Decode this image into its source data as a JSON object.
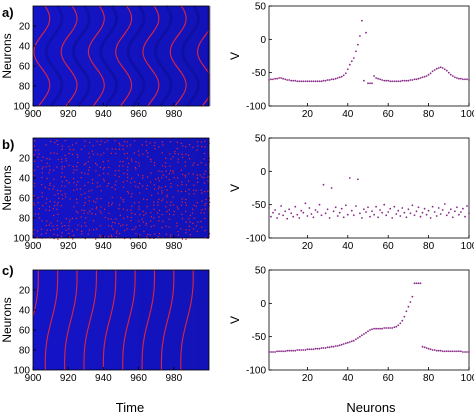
{
  "figure": {
    "panel_labels": [
      "a)",
      "b)",
      "c)"
    ],
    "xlabel_left": "Time",
    "xlabel_right": "Neurons"
  },
  "chart_data": [
    {
      "id": "a-raster",
      "type": "heatmap",
      "pattern": "waves",
      "ylabel": "Neurons",
      "xlim": [
        900,
        1000
      ],
      "ylim": [
        100,
        0
      ],
      "xticks": [
        900,
        920,
        940,
        960,
        980
      ],
      "yticks": [
        20,
        40,
        60,
        80,
        100
      ],
      "background_color": "#1414c8",
      "spike_color": "#e0243a",
      "grid": false
    },
    {
      "id": "a-profile",
      "type": "scatter",
      "ylabel": "V",
      "xlim": [
        1,
        100
      ],
      "ylim": [
        -100,
        50
      ],
      "xticks": [
        20,
        40,
        60,
        80,
        100
      ],
      "yticks": [
        50,
        0,
        -50,
        -100
      ],
      "marker_color": "#8a2a8a",
      "x": [
        1,
        2,
        3,
        4,
        5,
        6,
        7,
        8,
        9,
        10,
        11,
        12,
        13,
        14,
        15,
        16,
        17,
        18,
        19,
        20,
        21,
        22,
        23,
        24,
        25,
        26,
        27,
        28,
        29,
        30,
        31,
        32,
        33,
        34,
        35,
        36,
        37,
        38,
        39,
        40,
        41,
        42,
        43,
        44,
        45,
        46,
        47,
        48,
        49,
        50,
        51,
        52,
        53,
        54,
        55,
        56,
        57,
        58,
        59,
        60,
        61,
        62,
        63,
        64,
        65,
        66,
        67,
        68,
        69,
        70,
        71,
        72,
        73,
        74,
        75,
        76,
        77,
        78,
        79,
        80,
        81,
        82,
        83,
        84,
        85,
        86,
        87,
        88,
        89,
        90,
        91,
        92,
        93,
        94,
        95,
        96,
        97,
        98,
        99,
        100
      ],
      "y": [
        -61,
        -60,
        -60,
        -59,
        -59,
        -58,
        -58,
        -59,
        -60,
        -61,
        -61,
        -62,
        -62,
        -62,
        -63,
        -63,
        -63,
        -63,
        -63,
        -63,
        -63,
        -63,
        -63,
        -63,
        -63,
        -63,
        -63,
        -62,
        -62,
        -61,
        -61,
        -60,
        -60,
        -59,
        -58,
        -57,
        -56,
        -54,
        -51,
        -45,
        -38,
        -33,
        -28,
        -18,
        -8,
        5,
        28,
        -62,
        10,
        -66,
        -66,
        -66,
        -55,
        -58,
        -59,
        -60,
        -61,
        -62,
        -62,
        -62,
        -63,
        -63,
        -63,
        -63,
        -63,
        -63,
        -62,
        -62,
        -62,
        -62,
        -61,
        -61,
        -60,
        -60,
        -59,
        -58,
        -57,
        -56,
        -55,
        -53,
        -51,
        -48,
        -46,
        -44,
        -43,
        -42,
        -43,
        -45,
        -47,
        -50,
        -53,
        -55,
        -57,
        -58,
        -59,
        -59,
        -60,
        -60,
        -60,
        -61
      ]
    },
    {
      "id": "b-raster",
      "type": "heatmap",
      "pattern": "noise",
      "ylabel": "Neurons",
      "xlim": [
        900,
        1000
      ],
      "ylim": [
        100,
        0
      ],
      "xticks": [
        900,
        920,
        940,
        960,
        980
      ],
      "yticks": [
        20,
        40,
        60,
        80,
        100
      ],
      "background_color": "#1414c8",
      "spike_color": "#e0243a",
      "grid": false
    },
    {
      "id": "b-profile",
      "type": "scatter",
      "ylabel": "V",
      "xlim": [
        1,
        100
      ],
      "ylim": [
        -100,
        50
      ],
      "xticks": [
        20,
        40,
        60,
        80,
        100
      ],
      "yticks": [
        50,
        0,
        -50,
        -100
      ],
      "marker_color": "#8a2a8a",
      "x": [
        1,
        2,
        3,
        4,
        5,
        6,
        7,
        8,
        9,
        10,
        11,
        12,
        13,
        14,
        15,
        16,
        17,
        18,
        19,
        20,
        21,
        22,
        23,
        24,
        25,
        26,
        27,
        28,
        29,
        30,
        31,
        32,
        33,
        34,
        35,
        36,
        37,
        38,
        39,
        40,
        41,
        42,
        43,
        44,
        45,
        46,
        47,
        48,
        49,
        50,
        51,
        52,
        53,
        54,
        55,
        56,
        57,
        58,
        59,
        60,
        61,
        62,
        63,
        64,
        65,
        66,
        67,
        68,
        69,
        70,
        71,
        72,
        73,
        74,
        75,
        76,
        77,
        78,
        79,
        80,
        81,
        82,
        83,
        84,
        85,
        86,
        87,
        88,
        89,
        90,
        91,
        92,
        93,
        94,
        95,
        96,
        97,
        98,
        99,
        100
      ],
      "y": [
        -55,
        -68,
        -62,
        -58,
        -70,
        -64,
        -52,
        -66,
        -60,
        -71,
        -57,
        -63,
        -68,
        -53,
        -65,
        -70,
        -59,
        -62,
        -48,
        -67,
        -55,
        -64,
        -69,
        -58,
        -61,
        -50,
        -66,
        -20,
        -63,
        -57,
        -70,
        -25,
        -60,
        -54,
        -67,
        -62,
        -56,
        -69,
        -51,
        -65,
        -10,
        -59,
        -66,
        -52,
        -12,
        -63,
        -70,
        -57,
        -61,
        -54,
        -68,
        -60,
        -65,
        -53,
        -69,
        -58,
        -62,
        -50,
        -66,
        -61,
        -56,
        -70,
        -53,
        -64,
        -59,
        -67,
        -55,
        -62,
        -69,
        -57,
        -63,
        -51,
        -66,
        -60,
        -54,
        -68,
        -62,
        -56,
        -65,
        -59,
        -70,
        -53,
        -61,
        -67,
        -55,
        -64,
        -58,
        -49,
        -66,
        -62,
        -57,
        -69,
        -60,
        -54,
        -65,
        -61,
        -56,
        -68,
        -52,
        -63
      ]
    },
    {
      "id": "c-raster",
      "type": "heatmap",
      "pattern": "diagonals",
      "ylabel": "Neurons",
      "xlim": [
        900,
        1000
      ],
      "ylim": [
        100,
        0
      ],
      "xticks": [
        900,
        920,
        940,
        960,
        980
      ],
      "yticks": [
        20,
        40,
        60,
        80,
        100
      ],
      "background_color": "#1414c8",
      "spike_color": "#e0243a",
      "grid": false
    },
    {
      "id": "c-profile",
      "type": "scatter",
      "ylabel": "V",
      "xlim": [
        1,
        100
      ],
      "ylim": [
        -100,
        50
      ],
      "xticks": [
        20,
        40,
        60,
        80,
        100
      ],
      "yticks": [
        50,
        0,
        -50,
        -100
      ],
      "marker_color": "#8a2a8a",
      "x": [
        1,
        2,
        3,
        4,
        5,
        6,
        7,
        8,
        9,
        10,
        11,
        12,
        13,
        14,
        15,
        16,
        17,
        18,
        19,
        20,
        21,
        22,
        23,
        24,
        25,
        26,
        27,
        28,
        29,
        30,
        31,
        32,
        33,
        34,
        35,
        36,
        37,
        38,
        39,
        40,
        41,
        42,
        43,
        44,
        45,
        46,
        47,
        48,
        49,
        50,
        51,
        52,
        53,
        54,
        55,
        56,
        57,
        58,
        59,
        60,
        61,
        62,
        63,
        64,
        65,
        66,
        67,
        68,
        69,
        70,
        71,
        72,
        73,
        74,
        75,
        76,
        77,
        78,
        79,
        80,
        81,
        82,
        83,
        84,
        85,
        86,
        87,
        88,
        89,
        90,
        91,
        92,
        93,
        94,
        95,
        96,
        97,
        98,
        99,
        100
      ],
      "y": [
        -73,
        -73,
        -73,
        -73,
        -72,
        -72,
        -72,
        -72,
        -72,
        -71,
        -71,
        -71,
        -71,
        -71,
        -70,
        -70,
        -70,
        -70,
        -70,
        -69,
        -69,
        -69,
        -69,
        -68,
        -68,
        -68,
        -67,
        -67,
        -67,
        -66,
        -66,
        -65,
        -65,
        -64,
        -64,
        -63,
        -62,
        -61,
        -60,
        -59,
        -58,
        -57,
        -56,
        -54,
        -52,
        -50,
        -48,
        -46,
        -44,
        -42,
        -40,
        -39,
        -38,
        -38,
        -38,
        -38,
        -38,
        -37,
        -37,
        -37,
        -37,
        -37,
        -36,
        -35,
        -33,
        -30,
        -26,
        -20,
        -12,
        -5,
        2,
        10,
        30,
        30,
        30,
        30,
        -65,
        -66,
        -67,
        -68,
        -69,
        -70,
        -70,
        -71,
        -71,
        -71,
        -72,
        -72,
        -72,
        -72,
        -72,
        -72,
        -72,
        -72,
        -72,
        -72,
        -73,
        -73,
        -73,
        -73
      ]
    }
  ]
}
